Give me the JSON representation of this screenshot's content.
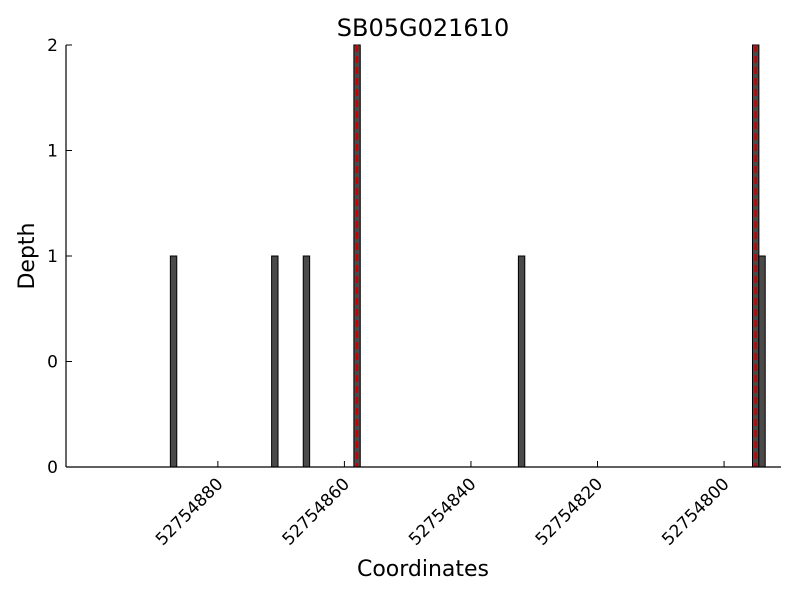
{
  "chart_data": {
    "type": "bar",
    "title": "SB05G021610",
    "xlabel": "Coordinates",
    "ylabel": "Depth",
    "x_axis_reversed": true,
    "xlim": [
      52754904,
      52754791
    ],
    "ylim": [
      0,
      2
    ],
    "y_ticks": [
      {
        "value": 0,
        "label": "0"
      },
      {
        "value": 0.5,
        "label": "0"
      },
      {
        "value": 1,
        "label": "1"
      },
      {
        "value": 1.5,
        "label": "1"
      },
      {
        "value": 2,
        "label": "2"
      }
    ],
    "x_ticks": [
      {
        "value": 52754880,
        "label": "52754880"
      },
      {
        "value": 52754860,
        "label": "52754860"
      },
      {
        "value": 52754840,
        "label": "52754840"
      },
      {
        "value": 52754820,
        "label": "52754820"
      },
      {
        "value": 52754800,
        "label": "52754800"
      }
    ],
    "series": [
      {
        "color": "#4a4a4a",
        "points": [
          {
            "x": 52754887,
            "y": 1
          },
          {
            "x": 52754871,
            "y": 1
          },
          {
            "x": 52754866,
            "y": 1
          },
          {
            "x": 52754858,
            "y": 2
          },
          {
            "x": 52754832,
            "y": 1
          },
          {
            "x": 52754795,
            "y": 2
          },
          {
            "x": 52754794,
            "y": 1
          }
        ]
      }
    ],
    "markers": [
      {
        "x": 52754858,
        "color": "#cc0000",
        "style": "dashed"
      },
      {
        "x": 52754795,
        "color": "#cc0000",
        "style": "dashed"
      }
    ],
    "grid": false
  }
}
